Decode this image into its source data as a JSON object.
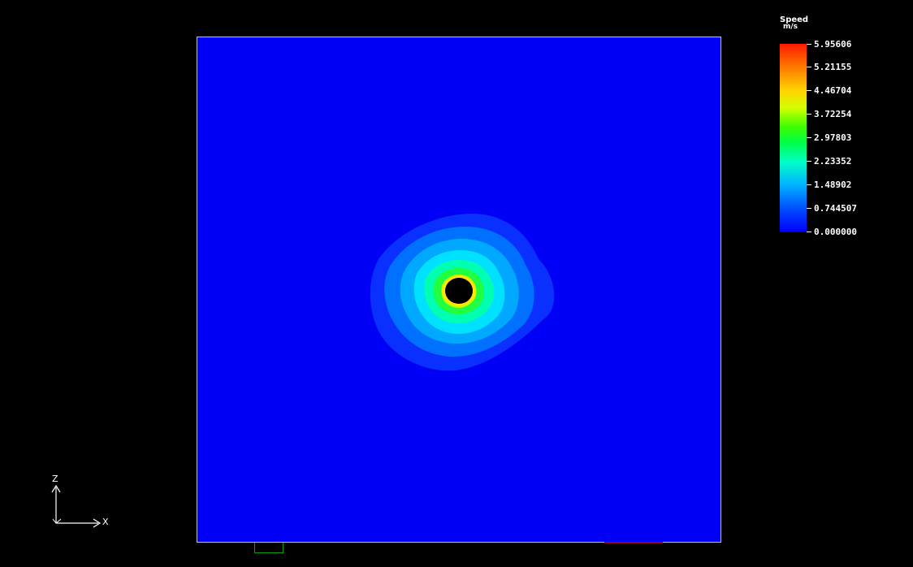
{
  "legend": {
    "title": "Speed",
    "unit": "m/s",
    "labels": [
      "5.95606",
      "5.21155",
      "4.46704",
      "3.72254",
      "2.97803",
      "2.23352",
      "1.48902",
      "0.744507",
      "0.000000"
    ],
    "min": 0.0,
    "max": 5.95606
  },
  "axes": {
    "vertical": "Z",
    "horizontal": "X"
  },
  "colors": {
    "background": "#000000",
    "field": "#0000ff",
    "frame": "#c8c8c8",
    "inlet_marker": "#00a000",
    "outlet_marker": "#8a1010"
  }
}
